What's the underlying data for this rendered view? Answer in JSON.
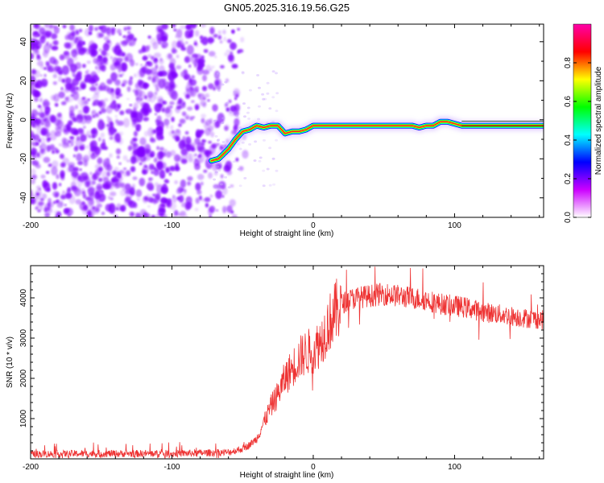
{
  "title": "GN05.2025.316.19.56.G25",
  "chart_data": [
    {
      "type": "heatmap",
      "xlabel": "Height of straight line (km)",
      "ylabel": "Frequency (Hz)",
      "xlim": [
        -200,
        163
      ],
      "ylim": [
        -50,
        49
      ],
      "xticks": [
        -200,
        -100,
        0,
        100
      ],
      "yticks": [
        -40,
        -20,
        0,
        20,
        40
      ],
      "colorbar": {
        "label": "Normalized spectral amplitude",
        "range": [
          0.0,
          1.0
        ],
        "ticks": [
          0.0,
          0.2,
          0.4,
          0.6,
          0.8
        ],
        "tick_labels": [
          "0.0",
          "0.2",
          "0.4",
          "0.6",
          "0.8"
        ],
        "colormap": [
          "#ffffff",
          "#cc00ff",
          "#0000ff",
          "#00ffff",
          "#00ff00",
          "#ffff00",
          "#ff0000",
          "#ff00aa"
        ]
      },
      "noise_region_x": [
        -200,
        -65
      ],
      "noise_color": "#7f00ff",
      "signal_trace": {
        "x": [
          -72,
          -67,
          -60,
          -55,
          -50,
          -45,
          -40,
          -35,
          -30,
          -25,
          -20,
          -15,
          -10,
          -5,
          0,
          5,
          10,
          20,
          30,
          40,
          50,
          60,
          70,
          75,
          80,
          85,
          90,
          95,
          100,
          105,
          110,
          120,
          130,
          140,
          150,
          163
        ],
        "y": [
          -21,
          -20,
          -15,
          -10,
          -6,
          -5,
          -3,
          -4,
          -3,
          -3,
          -7,
          -6,
          -6,
          -5,
          -3,
          -3,
          -3,
          -3,
          -3,
          -3,
          -3,
          -3,
          -3,
          -4,
          -3,
          -3,
          -1,
          -1,
          -2,
          -3,
          -3,
          -3,
          -3,
          -3,
          -3,
          -3
        ]
      }
    },
    {
      "type": "line",
      "xlabel": "Height of straight line (km)",
      "ylabel": "SNR (10 * v/v)",
      "xlim": [
        -200,
        163
      ],
      "ylim": [
        0,
        4800
      ],
      "xticks": [
        -200,
        -100,
        0,
        100
      ],
      "yticks": [
        1000,
        2000,
        3000,
        4000
      ],
      "color": "#ee3333",
      "series_envelope": {
        "x": [
          -200,
          -150,
          -100,
          -60,
          -50,
          -45,
          -40,
          -35,
          -30,
          -25,
          -20,
          -15,
          -10,
          -5,
          0,
          5,
          10,
          15,
          20,
          25,
          30,
          40,
          50,
          60,
          70,
          80,
          90,
          100,
          110,
          120,
          130,
          140,
          150,
          163
        ],
        "y": [
          120,
          130,
          130,
          160,
          250,
          350,
          500,
          900,
          1300,
          1600,
          2000,
          2250,
          2500,
          2650,
          2700,
          2900,
          3300,
          3600,
          3850,
          3950,
          4000,
          4050,
          4100,
          4050,
          4000,
          3950,
          3850,
          3800,
          3750,
          3650,
          3600,
          3550,
          3500,
          3450
        ]
      }
    }
  ]
}
